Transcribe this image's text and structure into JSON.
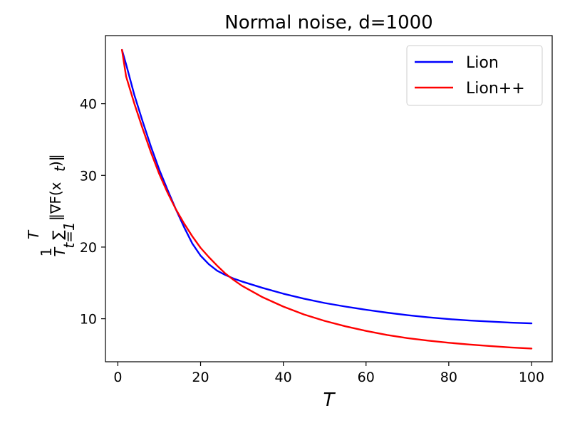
{
  "chart_data": {
    "type": "line",
    "title": "Normal noise, d=1000",
    "xlabel": "T",
    "ylabel": "1/T ∑_{t=1}^{T} ‖∇F(x_t)‖",
    "ylabel_parts": {
      "frac_num": "1",
      "frac_den": "T",
      "sum": "∑",
      "sum_top": "T",
      "sum_bottom": "t=1",
      "norm": "‖∇F(x",
      "sub": "t",
      "close": ")‖"
    },
    "xlim": [
      -3,
      105
    ],
    "ylim": [
      4,
      49.5
    ],
    "xticks": [
      0,
      20,
      40,
      60,
      80,
      100
    ],
    "yticks": [
      10,
      20,
      30,
      40
    ],
    "legend_position": "top-right",
    "x": [
      1,
      2,
      4,
      6,
      8,
      10,
      12,
      14,
      16,
      18,
      20,
      22,
      24,
      26,
      28,
      30,
      35,
      40,
      45,
      50,
      55,
      60,
      65,
      70,
      75,
      80,
      85,
      90,
      95,
      100
    ],
    "series": [
      {
        "name": "Lion",
        "color": "#0000ff",
        "values": [
          47.5,
          45.5,
          41.2,
          37.5,
          34.0,
          30.8,
          28.0,
          25.3,
          22.8,
          20.5,
          18.8,
          17.6,
          16.7,
          16.1,
          15.6,
          15.2,
          14.3,
          13.5,
          12.8,
          12.2,
          11.7,
          11.25,
          10.85,
          10.5,
          10.2,
          9.95,
          9.75,
          9.6,
          9.45,
          9.35
        ]
      },
      {
        "name": "Lion++",
        "color": "#ff0000",
        "values": [
          47.5,
          43.8,
          40.0,
          36.5,
          33.2,
          30.2,
          27.6,
          25.3,
          23.3,
          21.5,
          19.9,
          18.6,
          17.4,
          16.3,
          15.4,
          14.6,
          13.0,
          11.7,
          10.6,
          9.7,
          8.95,
          8.3,
          7.75,
          7.3,
          6.95,
          6.65,
          6.4,
          6.2,
          6.0,
          5.85
        ]
      }
    ]
  }
}
